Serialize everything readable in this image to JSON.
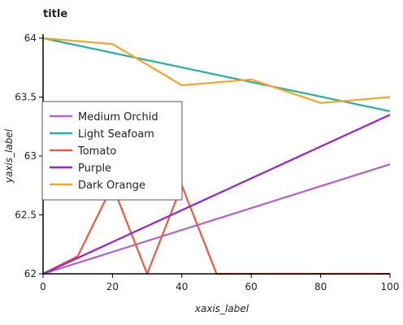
{
  "chart_data": {
    "type": "line",
    "title": "title",
    "xlabel": "xaxis_label",
    "ylabel": "yaxis_label",
    "xlim": [
      0,
      100
    ],
    "ylim": [
      62,
      64
    ],
    "x_ticks": [
      0,
      20,
      40,
      60,
      80,
      100
    ],
    "y_ticks": [
      62,
      62.5,
      63,
      63.5,
      64
    ],
    "y_tick_labels": [
      "62",
      "62.5",
      "63",
      "63.5",
      "64"
    ],
    "grid": false,
    "legend_position": "left",
    "series": [
      {
        "name": "Medium Orchid",
        "color": "#b65fcf",
        "x": [
          0,
          100
        ],
        "y": [
          62,
          62.93
        ]
      },
      {
        "name": "Light Seafoam",
        "color": "#20b2aa",
        "x": [
          0,
          100
        ],
        "y": [
          64,
          63.38
        ]
      },
      {
        "name": "Tomato",
        "color": "#f4583a",
        "x": [
          0,
          10,
          20,
          30,
          40,
          50,
          60,
          70,
          80,
          90,
          100
        ],
        "y": [
          62,
          62.15,
          62.75,
          62.0,
          62.75,
          62.0,
          62.0,
          62.0,
          62.0,
          62.0,
          62.0
        ]
      },
      {
        "name": "Purple",
        "color": "#9b1fd4",
        "x": [
          0,
          100
        ],
        "y": [
          62,
          63.35
        ]
      },
      {
        "name": "Dark Orange",
        "color": "#f5a623",
        "x": [
          0,
          20,
          40,
          60,
          80,
          100
        ],
        "y": [
          64,
          63.95,
          63.6,
          63.65,
          63.45,
          63.5
        ]
      }
    ]
  }
}
